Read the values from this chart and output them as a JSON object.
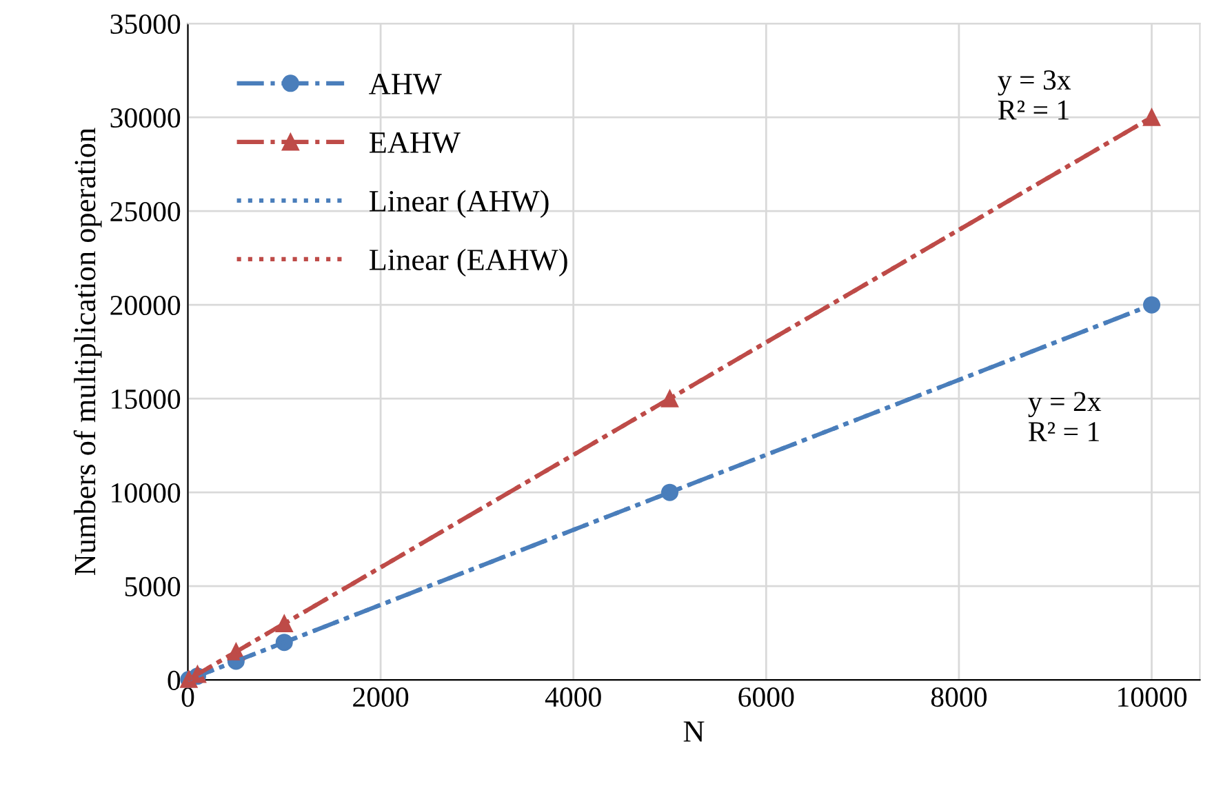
{
  "chart_data": {
    "type": "line",
    "xlabel": "N",
    "ylabel": "Numbers of multiplication operation",
    "xlim": [
      0,
      10500
    ],
    "xticks": [
      0,
      2000,
      4000,
      6000,
      8000,
      10000
    ],
    "ylim": [
      0,
      35000
    ],
    "yticks": [
      0,
      5000,
      10000,
      15000,
      20000,
      25000,
      30000,
      35000
    ],
    "grid": true,
    "legend": "top left",
    "series": [
      {
        "name": "AHW",
        "color": "#4a7ebb",
        "x": [
          10,
          100,
          500,
          1000,
          5000,
          10000
        ],
        "values": [
          20,
          200,
          1000,
          2000,
          10000,
          20000
        ],
        "marker": "circle",
        "line_style": "dashed"
      },
      {
        "name": "EAHW",
        "color": "#be4b48",
        "x": [
          10,
          100,
          500,
          1000,
          5000,
          10000
        ],
        "values": [
          30,
          300,
          1500,
          3000,
          15000,
          30000
        ],
        "marker": "triangle",
        "line_style": "dashed"
      },
      {
        "name": "Linear (AHW)",
        "color": "#4a7ebb",
        "x": [
          0,
          10000
        ],
        "values": [
          0,
          20000
        ],
        "marker": "none",
        "line_style": "dotted"
      },
      {
        "name": "Linear (EAHW)",
        "color": "#be4b48",
        "x": [
          0,
          10000
        ],
        "values": [
          0,
          30000
        ],
        "marker": "none",
        "line_style": "dotted"
      }
    ],
    "annotations": [
      "y = 3x\nR² = 1",
      "y = 2x\nR² = 1"
    ]
  }
}
